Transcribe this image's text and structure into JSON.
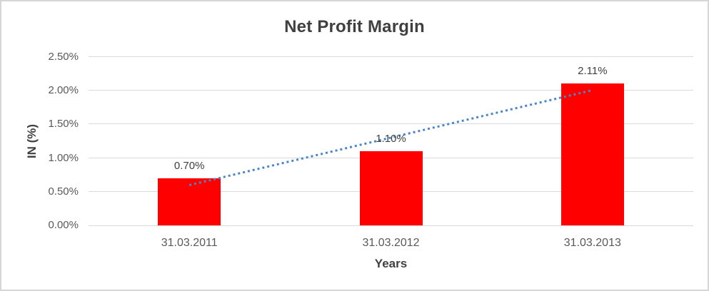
{
  "window": {
    "background": "#ffffff",
    "border_color": "#d6d6d6"
  },
  "chart_data": {
    "type": "bar",
    "title": "Net Profit Margin",
    "xlabel": "Years",
    "ylabel": "IN (%)",
    "categories": [
      "31.03.2011",
      "31.03.2012",
      "31.03.2013"
    ],
    "values": [
      0.7,
      1.1,
      2.11
    ],
    "data_labels": [
      "0.70%",
      "1.10%",
      "2.11%"
    ],
    "ytick_values": [
      0.0,
      0.5,
      1.0,
      1.5,
      2.0,
      2.5
    ],
    "ytick_labels": [
      "0.00%",
      "0.50%",
      "1.00%",
      "1.50%",
      "2.00%",
      "2.50%"
    ],
    "ylim": [
      0,
      2.5
    ],
    "grid": true,
    "legend": false,
    "bar_color": "#ff0000",
    "gridline_color": "#d9d9d9",
    "label_color": "#404040",
    "tick_color": "#595959",
    "trendline": {
      "type": "linear",
      "style": "dotted",
      "color": "#4a86c8"
    }
  }
}
